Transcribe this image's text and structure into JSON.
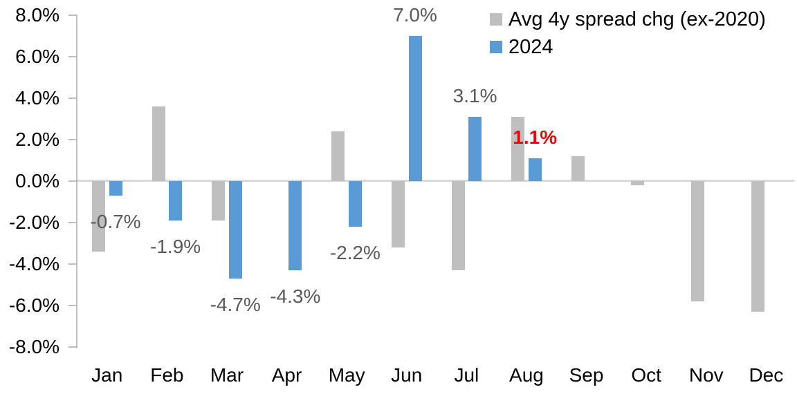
{
  "chart_data": {
    "type": "bar",
    "title": "",
    "categories": [
      "Jan",
      "Feb",
      "Mar",
      "Apr",
      "May",
      "Jun",
      "Jul",
      "Aug",
      "Sep",
      "Oct",
      "Nov",
      "Dec"
    ],
    "y_axis": {
      "min": -8.0,
      "max": 8.0,
      "tick_step": 2.0,
      "tick_labels": [
        "8.0%",
        "6.0%",
        "4.0%",
        "2.0%",
        "0.0%",
        "-2.0%",
        "-4.0%",
        "-6.0%",
        "-8.0%"
      ],
      "grid": false
    },
    "series": [
      {
        "name": "Avg 4y spread chg (ex-2020)",
        "color": "#BFBFBF",
        "values": [
          -3.4,
          3.6,
          -1.9,
          0.0,
          2.4,
          -3.2,
          -4.3,
          3.1,
          1.2,
          -0.2,
          -5.8,
          -6.3
        ]
      },
      {
        "name": "2024",
        "color": "#5B9BD5",
        "values": [
          -0.7,
          -1.9,
          -4.7,
          -4.3,
          -2.2,
          7.0,
          3.1,
          1.1,
          null,
          null,
          null,
          null
        ],
        "point_labels": [
          {
            "text": "-0.7%",
            "color": "#595959",
            "bold": false
          },
          {
            "text": "-1.9%",
            "color": "#595959",
            "bold": false
          },
          {
            "text": "-4.7%",
            "color": "#595959",
            "bold": false
          },
          {
            "text": "-4.3%",
            "color": "#595959",
            "bold": false
          },
          {
            "text": "-2.2%",
            "color": "#595959",
            "bold": false
          },
          {
            "text": "7.0%",
            "color": "#595959",
            "bold": false
          },
          {
            "text": "3.1%",
            "color": "#595959",
            "bold": false
          },
          {
            "text": "1.1%",
            "color": "#FF0000",
            "bold": true
          }
        ]
      }
    ],
    "legend": {
      "position": "top-right",
      "entries": [
        "Avg 4y spread chg (ex-2020)",
        "2024"
      ]
    },
    "zero_line": true
  },
  "colors": {
    "background": "#FFFFFF",
    "axis_line": "#BFBFBF",
    "zero_line": "#D9D9D9",
    "axis_text": "#000000",
    "data_label": "#595959",
    "highlight_label": "#FF0000",
    "series_gray": "#BFBFBF",
    "series_blue": "#5B9BD5"
  }
}
